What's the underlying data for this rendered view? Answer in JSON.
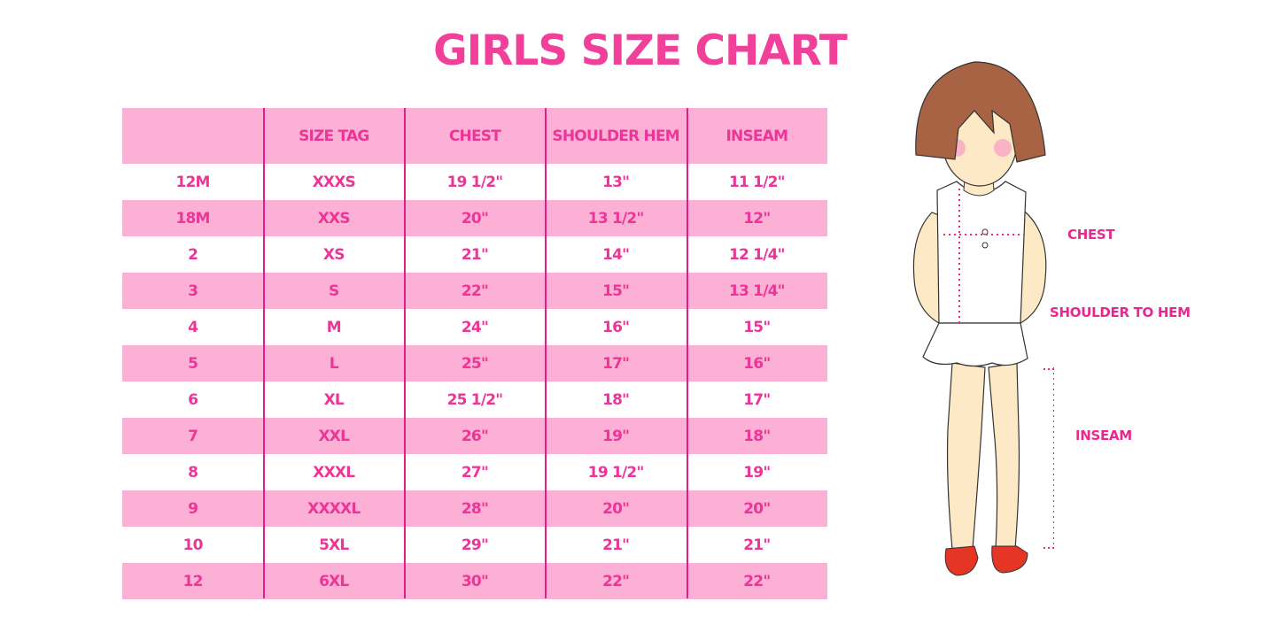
{
  "title": "GIRLS SIZE CHART",
  "table": {
    "headers": [
      "",
      "SIZE TAG",
      "CHEST",
      "SHOULDER HEM",
      "INSEAM"
    ],
    "rows": [
      [
        "12M",
        "XXXS",
        "19 1/2\"",
        "13\"",
        "11 1/2\""
      ],
      [
        "18M",
        "XXS",
        "20\"",
        "13 1/2\"",
        "12\""
      ],
      [
        "2",
        "XS",
        "21\"",
        "14\"",
        "12 1/4\""
      ],
      [
        "3",
        "S",
        "22\"",
        "15\"",
        "13 1/4\""
      ],
      [
        "4",
        "M",
        "24\"",
        "16\"",
        "15\""
      ],
      [
        "5",
        "L",
        "25\"",
        "17\"",
        "16\""
      ],
      [
        "6",
        "XL",
        "25 1/2\"",
        "18\"",
        "17\""
      ],
      [
        "7",
        "XXL",
        "26\"",
        "19\"",
        "18\""
      ],
      [
        "8",
        "XXXL",
        "27\"",
        "19 1/2\"",
        "19\""
      ],
      [
        "9",
        "XXXXL",
        "28\"",
        "20\"",
        "20\""
      ],
      [
        "10",
        "5XL",
        "29\"",
        "21\"",
        "21\""
      ],
      [
        "12",
        "6XL",
        "30\"",
        "22\"",
        "22\""
      ]
    ]
  },
  "diagram": {
    "chest": "CHEST",
    "shoulder_to_hem": "SHOULDER TO HEM",
    "inseam": "INSEAM"
  },
  "colors": {
    "accent": "#ec3596",
    "stripe": "#fdb0d6",
    "divider": "#e21e8c"
  }
}
